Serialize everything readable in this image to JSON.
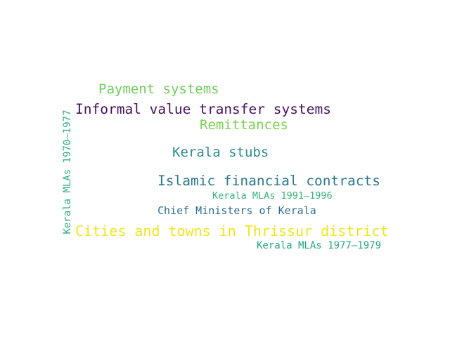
{
  "words": {
    "payment_systems": {
      "text": "Payment systems",
      "color": "#6ccd5a"
    },
    "informal_value_transfer": {
      "text": "Informal value transfer systems",
      "color": "#471063"
    },
    "remittances": {
      "text": "Remittances",
      "color": "#7ad151"
    },
    "kerala_stubs": {
      "text": "Kerala stubs",
      "color": "#2c8d8a"
    },
    "islamic_financial": {
      "text": "Islamic financial contracts",
      "color": "#2a788e"
    },
    "kerala_mlas_1991_1996": {
      "text": "Kerala MLAs 1991–1996",
      "color": "#35b779"
    },
    "chief_ministers": {
      "text": "Chief Ministers of Kerala",
      "color": "#2e6e8e"
    },
    "cities_towns_thrissur": {
      "text": "Cities and towns in Thrissur district",
      "color": "#f1e51d"
    },
    "kerala_mlas_1977_1979": {
      "text": "Kerala MLAs 1977–1979",
      "color": "#25a584"
    },
    "kerala_mlas_1970_1977": {
      "text": "Kerala MLAs 1970–1977",
      "color": "#29af7f"
    }
  }
}
